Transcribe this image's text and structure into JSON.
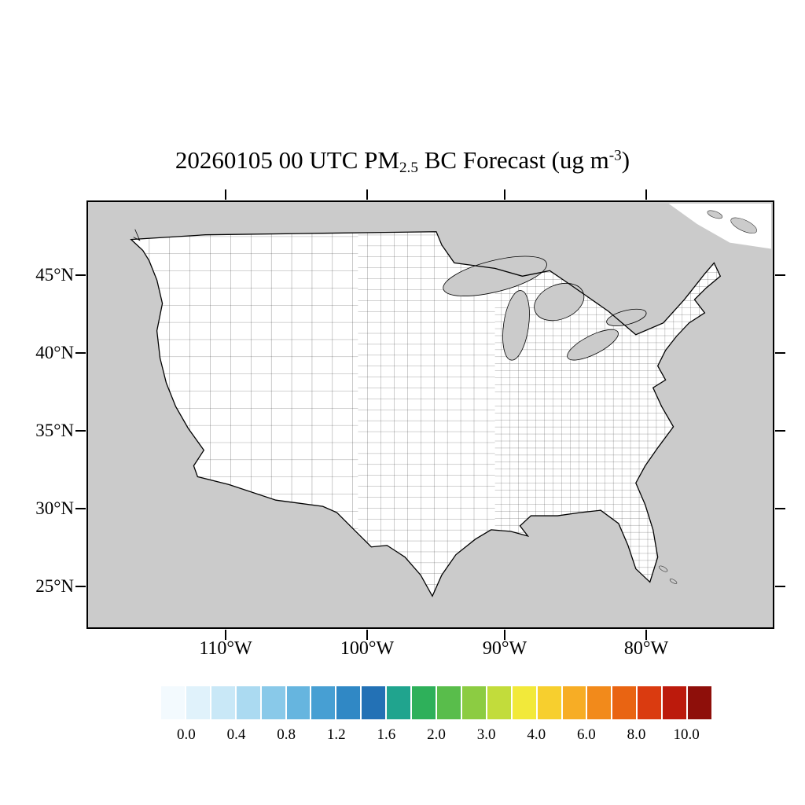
{
  "title": {
    "prefix": "20260105 00 UTC PM",
    "subscript": "2.5",
    "middle": " BC Forecast (ug m",
    "superscript": "-3",
    "suffix": ")"
  },
  "axes": {
    "y_tick_labels": [
      "45°N",
      "40°N",
      "35°N",
      "30°N",
      "25°N"
    ],
    "x_tick_labels": [
      "110°W",
      "100°W",
      "90°W",
      "80°W"
    ]
  },
  "map": {
    "land_color": "#ffffff",
    "mask_color": "#cbcbcb",
    "outline_color": "#000000",
    "region": "Contiguous United States with county boundaries; Canada, Mexico and oceans masked gray"
  },
  "colorbar": {
    "tick_labels": [
      "0.0",
      "0.4",
      "0.8",
      "1.2",
      "1.6",
      "2.0",
      "3.0",
      "4.0",
      "6.0",
      "8.0",
      "10.0"
    ],
    "colors": [
      "#F3FAFE",
      "#E0F2FB",
      "#C9E8F7",
      "#ABDAF1",
      "#89C9E9",
      "#66B5DF",
      "#479FD3",
      "#3088C5",
      "#2371B5",
      "#20A48E",
      "#2EB05A",
      "#59BD4B",
      "#8CCC42",
      "#C2DC3B",
      "#F2E93A",
      "#F7CF2E",
      "#F7AD25",
      "#F28A1B",
      "#E96412",
      "#DA3B10",
      "#BC1A0C",
      "#8E0F0A"
    ]
  },
  "chart_data": {
    "type": "heatmap",
    "title": "20260105 00 UTC PM2.5 BC Forecast (ug m-3)",
    "region": "Contiguous United States shown with county boundary outlines",
    "x_tick_labels": [
      "110°W",
      "100°W",
      "90°W",
      "80°W"
    ],
    "y_tick_labels": [
      "45°N",
      "40°N",
      "35°N",
      "30°N",
      "25°N"
    ],
    "colorbar_levels": [
      0.0,
      0.4,
      0.8,
      1.2,
      1.6,
      2.0,
      3.0,
      4.0,
      6.0,
      8.0,
      10.0
    ],
    "colorbar_colors": [
      "#F3FAFE",
      "#E0F2FB",
      "#C9E8F7",
      "#ABDAF1",
      "#89C9E9",
      "#66B5DF",
      "#479FD3",
      "#3088C5",
      "#2371B5",
      "#20A48E",
      "#2EB05A",
      "#59BD4B",
      "#8CCC42",
      "#C2DC3B",
      "#F2E93A",
      "#F7CF2E",
      "#F7AD25",
      "#F28A1B",
      "#E96412",
      "#DA3B10",
      "#BC1A0C",
      "#8E0F0A"
    ],
    "values": "No filled PM2.5 BC shading visible on map; counties appear unshaded (white), land/ocean mask gray",
    "legend_position": "bottom horizontal labelbar",
    "grid": false
  }
}
